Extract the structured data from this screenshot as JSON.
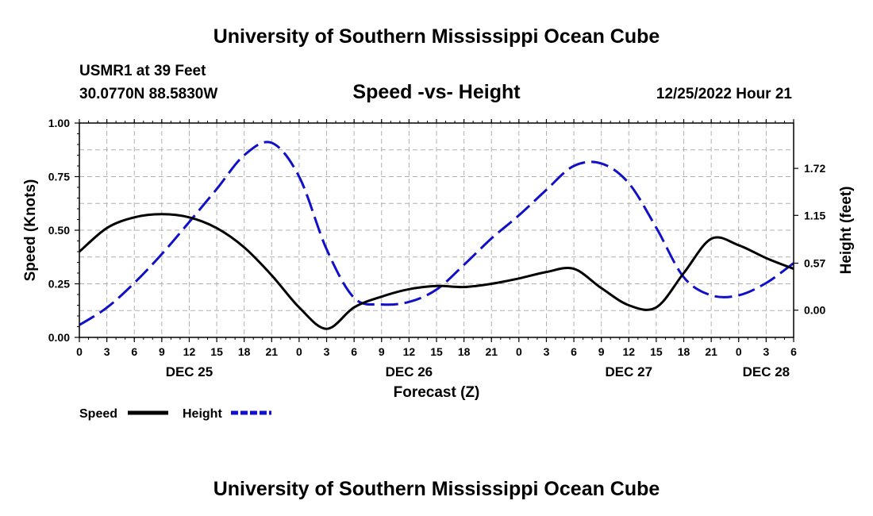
{
  "page": {
    "title_top": "University of Southern Mississippi Ocean Cube",
    "title_bottom": "University of Southern Mississippi Ocean Cube",
    "station": "USMR1 at 39 Feet",
    "coords": "30.0770N  88.5830W",
    "chart_title": "Speed -vs- Height",
    "datetime": "12/25/2022 Hour 21"
  },
  "colors": {
    "speed": "#000000",
    "height": "#1010c8",
    "grid": "#b0b0b0"
  },
  "chart_data": {
    "type": "line",
    "title": "Speed -vs- Height",
    "xlabel": "Forecast (Z)",
    "ylabel_left": "Speed (Knots)",
    "ylabel_right": "Height (feet)",
    "x_range_hours": [
      0,
      78
    ],
    "ylim_left": [
      0,
      1
    ],
    "ylim_right": [
      -0.33,
      2.27
    ],
    "left_ticks": [
      "0.00",
      "0.25",
      "0.50",
      "0.75",
      "1.00"
    ],
    "left_tick_values": [
      0,
      0.25,
      0.5,
      0.75,
      1.0
    ],
    "right_ticks": [
      "0.00",
      "0.57",
      "1.15",
      "1.72"
    ],
    "right_tick_values": [
      0,
      0.57,
      1.15,
      1.72
    ],
    "x_tick_labels": [
      "0",
      "3",
      "6",
      "9",
      "12",
      "15",
      "18",
      "21",
      "0",
      "3",
      "6",
      "9",
      "12",
      "15",
      "18",
      "21",
      "0",
      "3",
      "6",
      "9",
      "12",
      "15",
      "18",
      "21",
      "0",
      "3",
      "6"
    ],
    "date_labels": [
      {
        "label": "DEC 25",
        "hour": 12
      },
      {
        "label": "DEC 26",
        "hour": 36
      },
      {
        "label": "DEC 27",
        "hour": 60
      },
      {
        "label": "DEC 28",
        "hour": 75
      }
    ],
    "series": [
      {
        "name": "Speed",
        "axis": "left",
        "style": "solid",
        "x": [
          0,
          3,
          6,
          9,
          12,
          15,
          18,
          21,
          24,
          27,
          30,
          33,
          36,
          39,
          42,
          45,
          48,
          51,
          54,
          57,
          60,
          63,
          66,
          69,
          72,
          75,
          78
        ],
        "values": [
          0.4,
          0.51,
          0.56,
          0.575,
          0.56,
          0.51,
          0.42,
          0.29,
          0.14,
          0.04,
          0.14,
          0.19,
          0.225,
          0.24,
          0.235,
          0.25,
          0.275,
          0.305,
          0.32,
          0.23,
          0.15,
          0.14,
          0.3,
          0.46,
          0.43,
          0.37,
          0.32
        ]
      },
      {
        "name": "Height",
        "axis": "right",
        "style": "dashed",
        "x": [
          0,
          3,
          6,
          9,
          12,
          15,
          18,
          21,
          24,
          27,
          30,
          33,
          36,
          39,
          42,
          45,
          48,
          51,
          54,
          57,
          60,
          63,
          66,
          69,
          72,
          75,
          78
        ],
        "values": [
          -0.18,
          0.03,
          0.33,
          0.68,
          1.07,
          1.47,
          1.88,
          2.03,
          1.62,
          0.74,
          0.15,
          0.07,
          0.1,
          0.25,
          0.55,
          0.87,
          1.15,
          1.46,
          1.75,
          1.78,
          1.54,
          1.0,
          0.4,
          0.18,
          0.18,
          0.33,
          0.57
        ]
      }
    ],
    "legend": [
      {
        "label": "Speed",
        "style": "solid"
      },
      {
        "label": "Height",
        "style": "dashed"
      }
    ]
  }
}
